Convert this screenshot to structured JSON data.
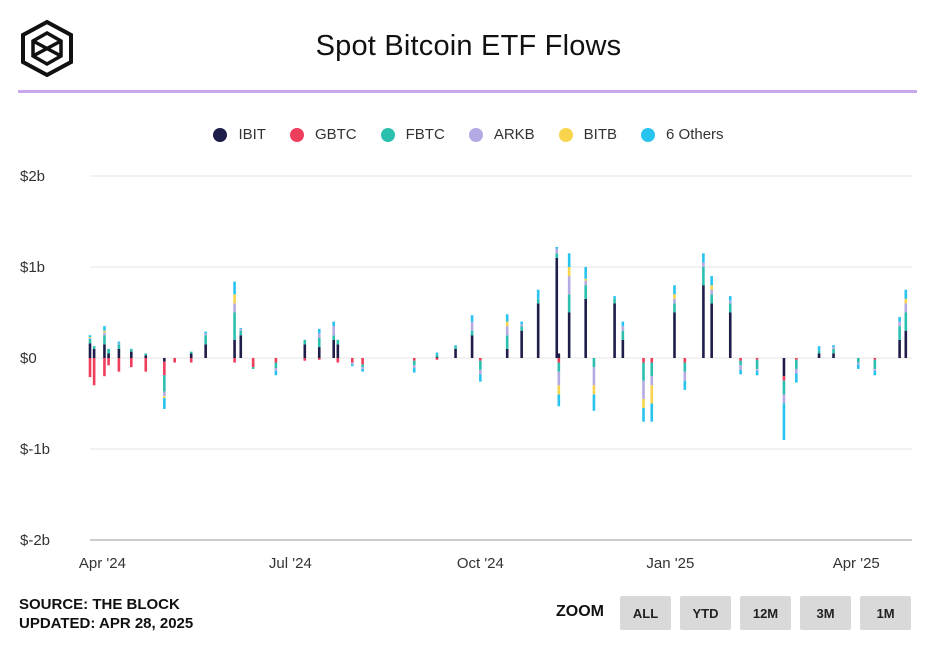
{
  "title": "Spot Bitcoin ETF Flows",
  "legend": [
    {
      "name": "IBIT",
      "color": "#1f1d4a"
    },
    {
      "name": "GBTC",
      "color": "#ef3e5c"
    },
    {
      "name": "FBTC",
      "color": "#2bbfae"
    },
    {
      "name": "ARKB",
      "color": "#b3a9e3"
    },
    {
      "name": "BITB",
      "color": "#f7d44c"
    },
    {
      "name": "6 Others",
      "color": "#29c3f0"
    }
  ],
  "footer": {
    "source": "SOURCE: THE BLOCK",
    "updated": "UPDATED: APR 28, 2025"
  },
  "zoom": {
    "label": "ZOOM",
    "buttons": [
      "ALL",
      "YTD",
      "12M",
      "3M",
      "1M"
    ]
  },
  "chart_data": {
    "type": "bar",
    "stacked": true,
    "title": "Spot Bitcoin ETF Flows",
    "yunit": "$b",
    "ylim": [
      -2,
      2
    ],
    "yticks": [
      {
        "value": 2,
        "label": "$2b"
      },
      {
        "value": 1,
        "label": "$1b"
      },
      {
        "value": 0,
        "label": "$0"
      },
      {
        "value": -1,
        "label": "$-1b"
      },
      {
        "value": -2,
        "label": "$-2b"
      }
    ],
    "xrange": [
      "2024-03-26",
      "2025-04-28"
    ],
    "xticks": [
      {
        "date": "2024-04-01",
        "label": "Apr '24"
      },
      {
        "date": "2024-07-01",
        "label": "Jul '24"
      },
      {
        "date": "2024-10-01",
        "label": "Oct '24"
      },
      {
        "date": "2025-01-01",
        "label": "Jan '25"
      },
      {
        "date": "2025-04-01",
        "label": "Apr '25"
      }
    ],
    "grid": true,
    "legend_position": "top-center",
    "series_names": [
      "IBIT",
      "GBTC",
      "FBTC",
      "ARKB",
      "BITB",
      "6 Others"
    ],
    "bars": [
      {
        "date": "2024-03-26",
        "values": [
          0.16,
          -0.21,
          0.05,
          0.01,
          0.01,
          0.02
        ]
      },
      {
        "date": "2024-03-28",
        "values": [
          0.1,
          -0.3,
          0.03,
          0.0,
          0.0,
          0.0
        ]
      },
      {
        "date": "2024-04-02",
        "values": [
          0.15,
          -0.2,
          0.1,
          0.03,
          0.02,
          0.05
        ]
      },
      {
        "date": "2024-04-04",
        "values": [
          0.05,
          -0.08,
          0.05,
          0.0,
          0.0,
          0.0
        ]
      },
      {
        "date": "2024-04-09",
        "values": [
          0.1,
          -0.15,
          0.05,
          0.01,
          0.0,
          0.02
        ]
      },
      {
        "date": "2024-04-15",
        "values": [
          0.07,
          -0.1,
          0.03,
          0.0,
          0.0,
          0.0
        ]
      },
      {
        "date": "2024-04-22",
        "values": [
          0.03,
          -0.15,
          0.02,
          0.0,
          0.0,
          0.0
        ]
      },
      {
        "date": "2024-05-01",
        "values": [
          -0.04,
          -0.15,
          -0.18,
          -0.05,
          -0.02,
          -0.12
        ]
      },
      {
        "date": "2024-05-06",
        "values": [
          0.0,
          -0.05,
          0.0,
          0.0,
          0.0,
          0.0
        ]
      },
      {
        "date": "2024-05-14",
        "values": [
          0.05,
          -0.05,
          0.02,
          0.0,
          0.0,
          0.0
        ]
      },
      {
        "date": "2024-05-21",
        "values": [
          0.15,
          0.0,
          0.1,
          0.02,
          0.0,
          0.02
        ]
      },
      {
        "date": "2024-06-04",
        "values": [
          0.2,
          -0.05,
          0.3,
          0.1,
          0.1,
          0.14
        ]
      },
      {
        "date": "2024-06-07",
        "values": [
          0.25,
          0.0,
          0.05,
          0.02,
          0.0,
          0.01
        ]
      },
      {
        "date": "2024-06-13",
        "values": [
          0.0,
          -0.1,
          -0.02,
          0.0,
          0.0,
          0.0
        ]
      },
      {
        "date": "2024-06-24",
        "values": [
          0.0,
          -0.05,
          -0.06,
          -0.03,
          0.0,
          -0.05
        ]
      },
      {
        "date": "2024-07-08",
        "values": [
          0.15,
          -0.03,
          0.05,
          0.0,
          0.0,
          0.0
        ]
      },
      {
        "date": "2024-07-15",
        "values": [
          0.12,
          -0.02,
          0.1,
          0.05,
          0.0,
          0.05
        ]
      },
      {
        "date": "2024-07-22",
        "values": [
          0.2,
          0.0,
          0.05,
          0.1,
          0.0,
          0.05
        ]
      },
      {
        "date": "2024-07-24",
        "values": [
          0.15,
          -0.05,
          0.05,
          0.0,
          0.0,
          0.0
        ]
      },
      {
        "date": "2024-07-31",
        "values": [
          0.0,
          -0.05,
          0.0,
          -0.02,
          0.0,
          -0.02
        ]
      },
      {
        "date": "2024-08-05",
        "values": [
          0.0,
          -0.07,
          -0.03,
          -0.02,
          0.0,
          -0.03
        ]
      },
      {
        "date": "2024-08-19",
        "values": [
          0.0,
          0.0,
          0.0,
          0.0,
          0.0,
          0.0
        ]
      },
      {
        "date": "2024-08-30",
        "values": [
          0.0,
          -0.03,
          -0.05,
          -0.03,
          0.0,
          -0.05
        ]
      },
      {
        "date": "2024-09-10",
        "values": [
          0.01,
          -0.02,
          0.03,
          0.0,
          0.0,
          0.02
        ]
      },
      {
        "date": "2024-09-19",
        "values": [
          0.1,
          0.0,
          0.03,
          0.0,
          0.0,
          0.01
        ]
      },
      {
        "date": "2024-09-27",
        "values": [
          0.25,
          0.0,
          0.05,
          0.1,
          0.0,
          0.07
        ]
      },
      {
        "date": "2024-10-01",
        "values": [
          0.0,
          -0.03,
          -0.1,
          -0.05,
          0.0,
          -0.08
        ]
      },
      {
        "date": "2024-10-14",
        "values": [
          0.1,
          0.0,
          0.15,
          0.1,
          0.05,
          0.08
        ]
      },
      {
        "date": "2024-10-21",
        "values": [
          0.3,
          0.0,
          0.05,
          0.02,
          0.0,
          0.03
        ]
      },
      {
        "date": "2024-10-29",
        "values": [
          0.6,
          0.0,
          0.05,
          0.0,
          0.0,
          0.1
        ]
      },
      {
        "date": "2024-11-07",
        "values": [
          1.1,
          0.0,
          0.05,
          0.05,
          0.0,
          0.02
        ]
      },
      {
        "date": "2024-11-08",
        "values": [
          0.05,
          -0.05,
          -0.1,
          -0.15,
          -0.1,
          -0.13
        ]
      },
      {
        "date": "2024-11-13",
        "values": [
          0.5,
          0.0,
          0.2,
          0.2,
          0.1,
          0.15
        ]
      },
      {
        "date": "2024-11-21",
        "values": [
          0.65,
          0.0,
          0.15,
          0.05,
          0.02,
          0.13
        ]
      },
      {
        "date": "2024-11-25",
        "values": [
          0.0,
          0.0,
          -0.1,
          -0.2,
          -0.1,
          -0.18
        ]
      },
      {
        "date": "2024-12-05",
        "values": [
          0.6,
          0.0,
          0.05,
          0.0,
          0.0,
          0.03
        ]
      },
      {
        "date": "2024-12-09",
        "values": [
          0.2,
          0.0,
          0.1,
          0.05,
          0.0,
          0.05
        ]
      },
      {
        "date": "2024-12-19",
        "values": [
          0.0,
          -0.05,
          -0.2,
          -0.2,
          -0.1,
          -0.15
        ]
      },
      {
        "date": "2024-12-23",
        "values": [
          0.0,
          -0.05,
          -0.15,
          -0.1,
          -0.2,
          -0.2
        ]
      },
      {
        "date": "2025-01-03",
        "values": [
          0.5,
          0.0,
          0.1,
          0.05,
          0.05,
          0.1
        ]
      },
      {
        "date": "2025-01-08",
        "values": [
          0.0,
          -0.05,
          -0.1,
          -0.1,
          0.0,
          -0.1
        ]
      },
      {
        "date": "2025-01-17",
        "values": [
          0.8,
          0.0,
          0.2,
          0.05,
          0.0,
          0.1
        ]
      },
      {
        "date": "2025-01-21",
        "values": [
          0.6,
          0.0,
          0.1,
          0.05,
          0.05,
          0.1
        ]
      },
      {
        "date": "2025-01-30",
        "values": [
          0.5,
          0.0,
          0.1,
          0.03,
          0.0,
          0.05
        ]
      },
      {
        "date": "2025-02-04",
        "values": [
          0.0,
          -0.03,
          -0.05,
          -0.05,
          0.0,
          -0.05
        ]
      },
      {
        "date": "2025-02-12",
        "values": [
          0.0,
          -0.02,
          -0.1,
          -0.02,
          0.0,
          -0.05
        ]
      },
      {
        "date": "2025-02-25",
        "values": [
          -0.2,
          -0.05,
          -0.15,
          -0.1,
          0.0,
          -0.4
        ]
      },
      {
        "date": "2025-03-03",
        "values": [
          0.0,
          -0.02,
          -0.1,
          -0.05,
          0.0,
          -0.1
        ]
      },
      {
        "date": "2025-03-14",
        "values": [
          0.05,
          0.0,
          0.03,
          0.0,
          0.0,
          0.05
        ]
      },
      {
        "date": "2025-03-21",
        "values": [
          0.05,
          0.0,
          0.05,
          0.02,
          0.0,
          0.02
        ]
      },
      {
        "date": "2025-04-02",
        "values": [
          0.0,
          0.0,
          -0.05,
          -0.02,
          0.0,
          -0.05
        ]
      },
      {
        "date": "2025-04-10",
        "values": [
          0.0,
          -0.02,
          -0.1,
          -0.02,
          0.0,
          -0.05
        ]
      },
      {
        "date": "2025-04-22",
        "values": [
          0.2,
          0.0,
          0.15,
          0.05,
          0.0,
          0.05
        ]
      },
      {
        "date": "2025-04-25",
        "values": [
          0.3,
          0.0,
          0.2,
          0.1,
          0.05,
          0.1
        ]
      }
    ]
  }
}
